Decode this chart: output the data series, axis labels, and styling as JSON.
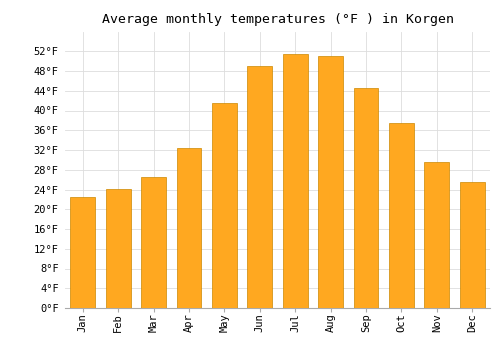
{
  "title": "Average monthly temperatures (°F ) in Korgen",
  "months": [
    "Jan",
    "Feb",
    "Mar",
    "Apr",
    "May",
    "Jun",
    "Jul",
    "Aug",
    "Sep",
    "Oct",
    "Nov",
    "Dec"
  ],
  "values": [
    22.5,
    24.2,
    26.5,
    32.5,
    41.5,
    49.0,
    51.5,
    51.0,
    44.5,
    37.5,
    29.5,
    25.5
  ],
  "bar_color": "#FFA820",
  "bar_edge_color": "#CC8800",
  "background_color": "#ffffff",
  "grid_color": "#dddddd",
  "ylim": [
    0,
    56
  ],
  "yticks": [
    0,
    4,
    8,
    12,
    16,
    20,
    24,
    28,
    32,
    36,
    40,
    44,
    48,
    52
  ],
  "title_fontsize": 9.5,
  "tick_fontsize": 7.5,
  "font_family": "monospace"
}
